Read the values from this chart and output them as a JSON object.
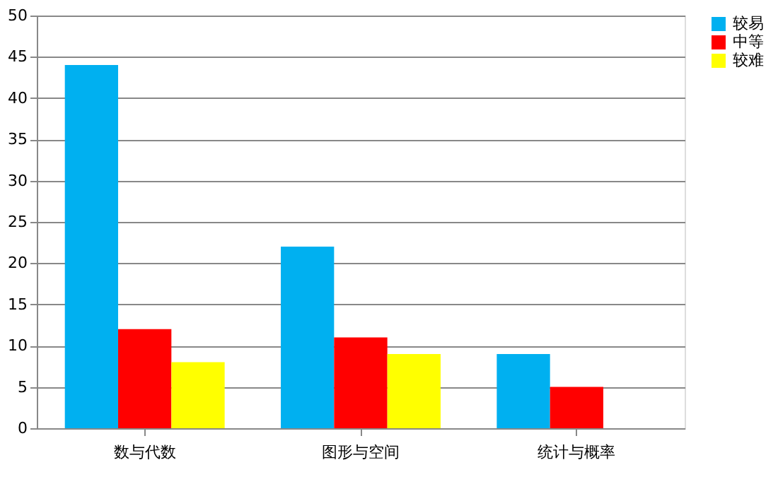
{
  "chart_data": {
    "type": "bar",
    "categories": [
      "数与代数",
      "图形与空间",
      "统计与概率"
    ],
    "series": [
      {
        "name": "较易",
        "color": "#00b0f0",
        "values": [
          44,
          22,
          9
        ]
      },
      {
        "name": "中等",
        "color": "#ff0000",
        "values": [
          12,
          11,
          5
        ]
      },
      {
        "name": "较难",
        "color": "#ffff00",
        "values": [
          8,
          9,
          0
        ]
      }
    ],
    "ylim": [
      0,
      50
    ],
    "yticks": [
      0,
      5,
      10,
      15,
      20,
      25,
      30,
      35,
      40,
      45,
      50
    ],
    "grid": "y",
    "legend": "right"
  }
}
